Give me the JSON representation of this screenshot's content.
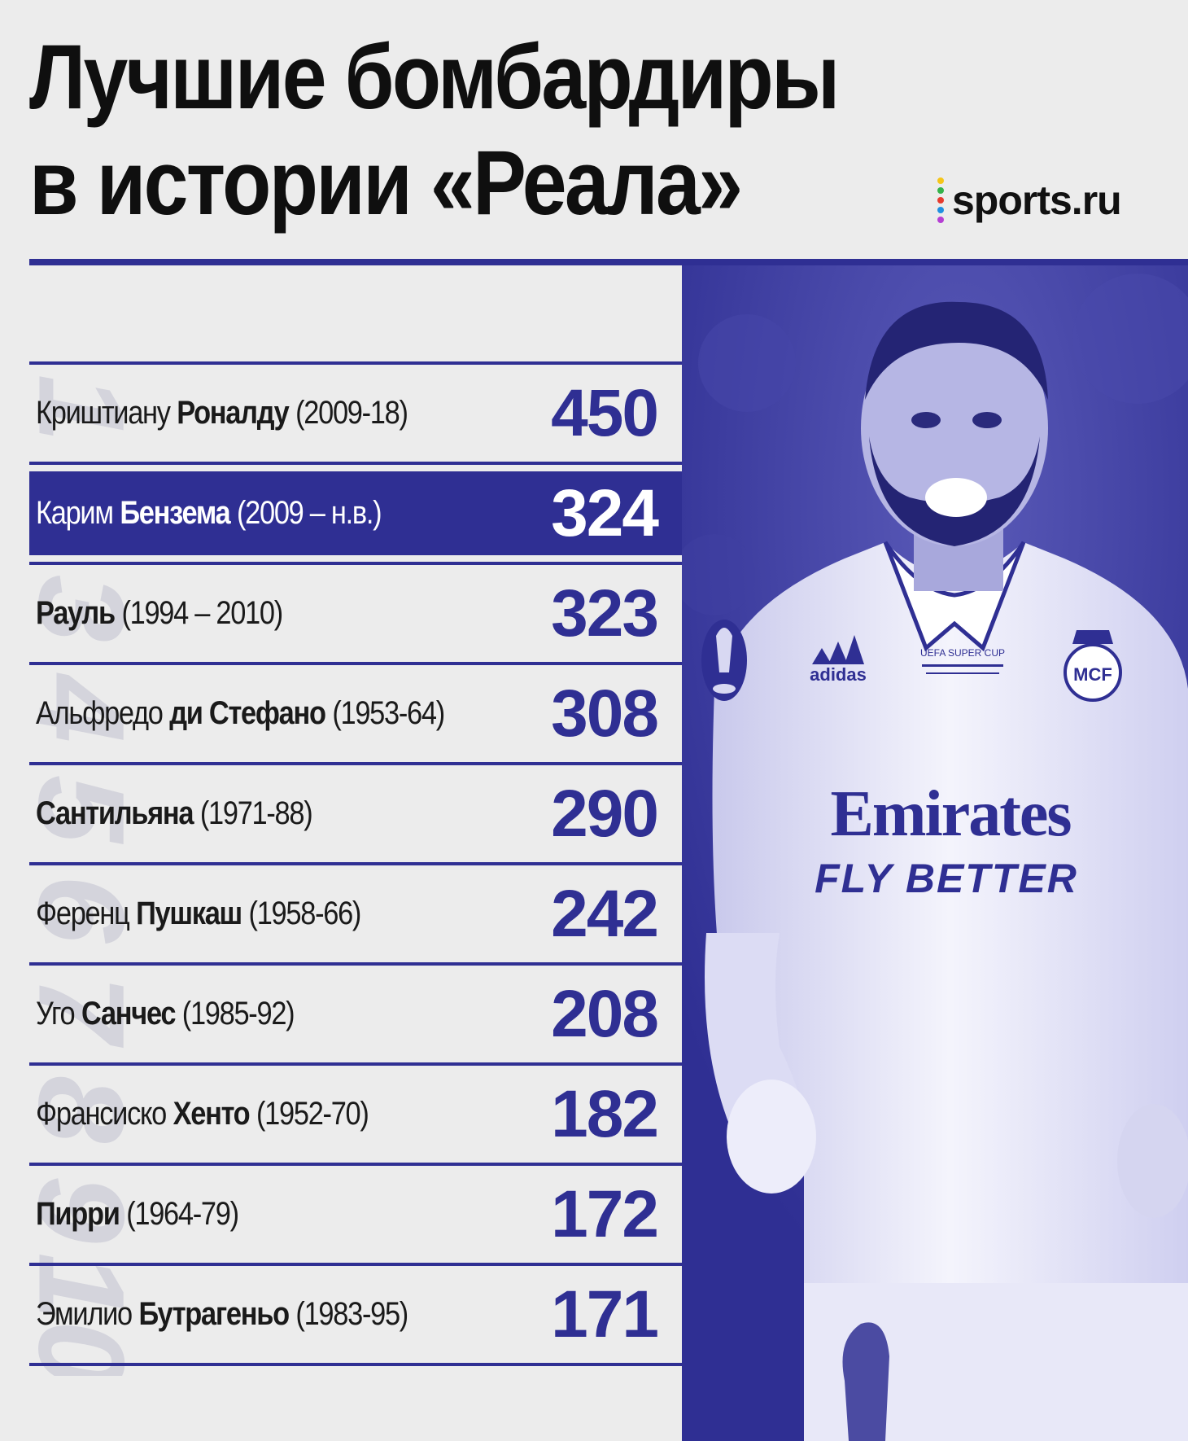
{
  "title": {
    "line1": "Лучшие бомбардиры",
    "line2": "в истории «Реала»"
  },
  "logo": {
    "text": "sports.ru",
    "dot_colors": [
      "#f5c518",
      "#34b24a",
      "#e63a2e",
      "#1f8fe0",
      "#b53fd3"
    ]
  },
  "colors": {
    "accent": "#2f2f93",
    "background": "#ececec",
    "text": "#1a1a1a"
  },
  "photo": {
    "jersey_sponsor": "Emirates",
    "jersey_slogan": "FLY BETTER",
    "jersey_brand": "adidas",
    "patch": "UEFA SUPER CUP",
    "badge": "MCF"
  },
  "ranks": [
    "1",
    "2",
    "3",
    "4",
    "5",
    "6",
    "7",
    "8",
    "9",
    "10"
  ],
  "chart_data": {
    "type": "table",
    "title": "Лучшие бомбардиры в истории «Реала»",
    "rows": [
      {
        "rank": 1,
        "first": "Криштиану",
        "last": "Роналду",
        "years": "(2009-18)",
        "goals": 450
      },
      {
        "rank": 2,
        "first": "Карим",
        "last": "Бензема",
        "years": "(2009 – н.в.)",
        "goals": 324,
        "highlight": true
      },
      {
        "rank": 3,
        "first": "",
        "last": "Рауль",
        "years": "(1994 – 2010)",
        "goals": 323
      },
      {
        "rank": 4,
        "first": "Альфредо",
        "last": "ди Стефано",
        "years": "(1953-64)",
        "goals": 308
      },
      {
        "rank": 5,
        "first": "",
        "last": "Сантильяна",
        "years": "(1971-88)",
        "goals": 290
      },
      {
        "rank": 6,
        "first": "Ференц",
        "last": "Пушкаш",
        "years": "(1958-66)",
        "goals": 242
      },
      {
        "rank": 7,
        "first": "Уго",
        "last": "Санчес",
        "years": "(1985-92)",
        "goals": 208
      },
      {
        "rank": 8,
        "first": "Франсиско",
        "last": "Хенто",
        "years": "(1952-70)",
        "goals": 182
      },
      {
        "rank": 9,
        "first": "",
        "last": "Пирри",
        "years": "(1964-79)",
        "goals": 172
      },
      {
        "rank": 10,
        "first": "Эмилио",
        "last": "Бутрагеньо",
        "years": "(1983-95)",
        "goals": 171
      }
    ]
  }
}
